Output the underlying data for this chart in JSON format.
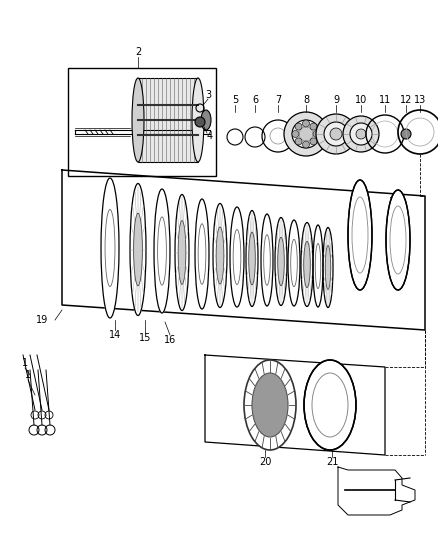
{
  "background_color": "#ffffff",
  "fig_width": 4.38,
  "fig_height": 5.33,
  "dpi": 100,
  "color": "#000000",
  "gray": "#888888",
  "dark": "#333333"
}
